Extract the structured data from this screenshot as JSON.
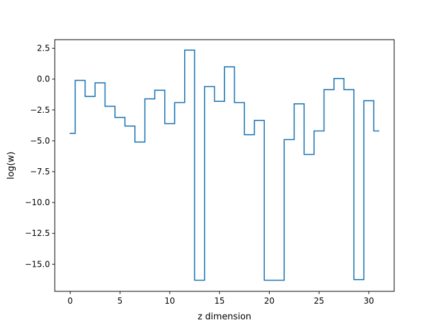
{
  "chart_data": {
    "type": "line",
    "drawstyle": "steps-mid",
    "xlabel": "z dimension",
    "ylabel": "log(w)",
    "xlim": [
      -1.55,
      32.55
    ],
    "ylim": [
      -17.2,
      3.2
    ],
    "xticks": [
      0,
      5,
      10,
      15,
      20,
      25,
      30
    ],
    "xtick_labels": [
      "0",
      "5",
      "10",
      "15",
      "20",
      "25",
      "30"
    ],
    "yticks": [
      2.5,
      0.0,
      -2.5,
      -5.0,
      -7.5,
      -10.0,
      -12.5,
      -15.0
    ],
    "ytick_labels": [
      "2.5",
      "0.0",
      "−2.5",
      "−5.0",
      "−7.5",
      "−10.0",
      "−12.5",
      "−15.0"
    ],
    "grid": false,
    "series_color": "#1f77b4",
    "series": [
      {
        "x": [
          0,
          1,
          2,
          3,
          4,
          5,
          6,
          7,
          8,
          9,
          10,
          11,
          12,
          13,
          14,
          15,
          16,
          17,
          18,
          19,
          20,
          21,
          22,
          23,
          24,
          25,
          26,
          27,
          28,
          29,
          30,
          31
        ],
        "values": [
          -4.4,
          -0.1,
          -1.4,
          -0.3,
          -2.2,
          -3.1,
          -3.8,
          -5.1,
          -1.6,
          -0.9,
          -3.6,
          -1.9,
          2.35,
          -16.3,
          -0.6,
          -1.8,
          1.0,
          -1.9,
          -4.5,
          -3.35,
          -16.3,
          -16.3,
          -4.9,
          -2.0,
          -6.1,
          -4.2,
          -0.85,
          0.05,
          -0.85,
          -16.25,
          -1.75,
          -4.2
        ]
      }
    ]
  }
}
